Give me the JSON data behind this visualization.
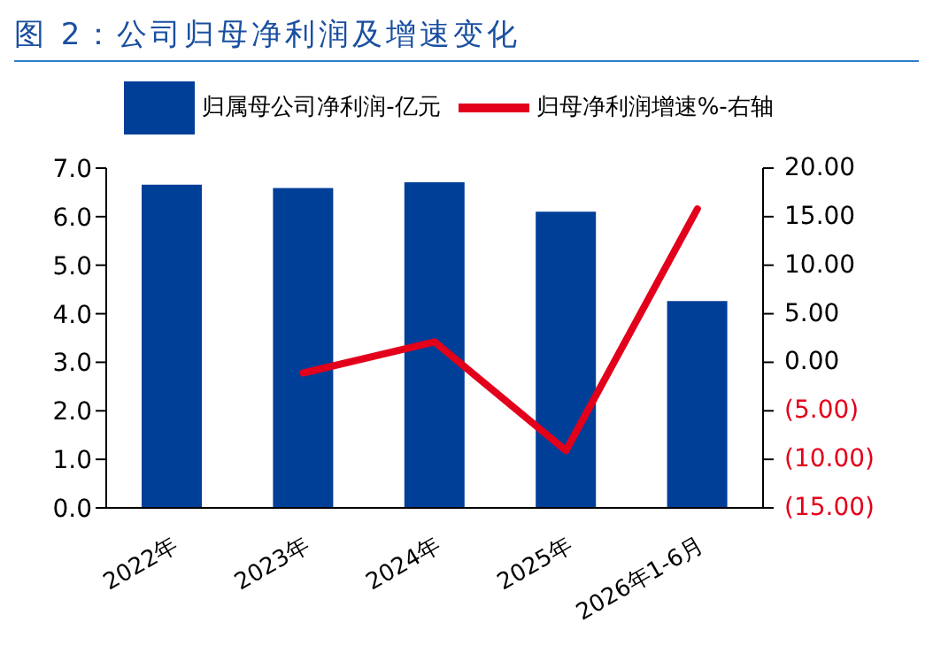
{
  "chart_data": {
    "type": "bar",
    "title": "图 2：公司归母净利润及增速变化",
    "categories": [
      "2022年",
      "2023年",
      "2024年",
      "2025年",
      "2026年1-6月"
    ],
    "series": [
      {
        "name": "归属母公司净利润-亿元",
        "color": "#003f98",
        "values": [
          6.66,
          6.59,
          6.71,
          6.1,
          4.26
        ]
      },
      {
        "name": "归母净利润增速%-右轴",
        "type": "line",
        "axis": "y2",
        "color": "#e3001b",
        "values": [
          null,
          -1.1,
          2.1,
          -9.1,
          15.8
        ]
      }
    ],
    "ylim": [
      0,
      7
    ],
    "yticks": [
      {
        "value": 0,
        "label": "0.0"
      },
      {
        "value": 1,
        "label": "1.0"
      },
      {
        "value": 2,
        "label": "2.0"
      },
      {
        "value": 3,
        "label": "3.0"
      },
      {
        "value": 4,
        "label": "4.0"
      },
      {
        "value": 5,
        "label": "5.0"
      },
      {
        "value": 6,
        "label": "6.0"
      },
      {
        "value": 7,
        "label": "7.0"
      }
    ],
    "y2lim": [
      -15,
      20
    ],
    "y2ticks": [
      {
        "value": -15,
        "label": "(15.00)"
      },
      {
        "value": -10,
        "label": "(10.00)"
      },
      {
        "value": -5,
        "label": "(5.00)"
      },
      {
        "value": 0,
        "label": "0.00"
      },
      {
        "value": 5,
        "label": "5.00"
      },
      {
        "value": 10,
        "label": "10.00"
      },
      {
        "value": 15,
        "label": "15.00"
      },
      {
        "value": 20,
        "label": "20.00"
      }
    ],
    "grid": false,
    "legend": "top",
    "marker": "none",
    "line_style": "solid"
  }
}
